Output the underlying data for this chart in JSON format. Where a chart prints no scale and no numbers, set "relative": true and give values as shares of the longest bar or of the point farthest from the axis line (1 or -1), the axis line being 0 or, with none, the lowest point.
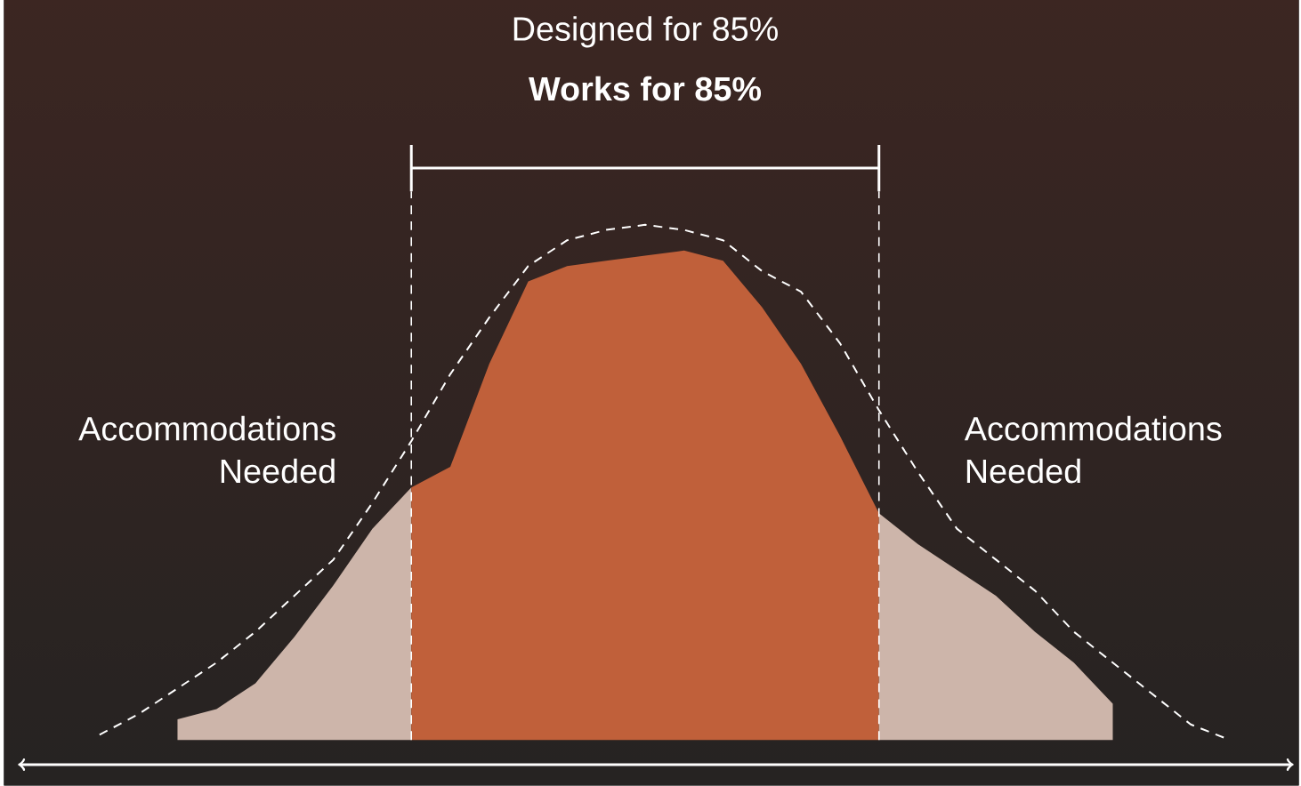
{
  "chart_data": {
    "type": "area",
    "relative": true,
    "tick_labels": false,
    "categories": [
      null,
      null,
      null,
      null,
      null,
      null,
      null,
      null,
      null,
      null,
      null,
      null,
      null,
      null,
      null,
      null,
      null,
      null,
      null,
      null,
      null,
      null,
      null,
      null,
      null,
      null,
      null,
      null,
      null,
      null
    ],
    "series": [
      {
        "color": "#cdb5aa",
        "values": [
          null,
          null,
          0.04,
          0.06,
          0.11,
          0.2,
          0.3,
          0.41,
          0.49,
          null,
          null,
          null,
          null,
          null,
          null,
          null,
          null,
          null,
          null,
          null,
          null,
          null,
          null,
          null,
          null,
          null,
          null,
          null,
          null,
          null
        ]
      },
      {
        "color": "#c0603a",
        "values": [
          null,
          null,
          null,
          null,
          null,
          null,
          null,
          null,
          0.49,
          0.53,
          0.73,
          0.89,
          0.92,
          0.93,
          0.94,
          0.95,
          0.93,
          0.84,
          0.73,
          0.59,
          0.44,
          null,
          null,
          null,
          null,
          null,
          null,
          null,
          null,
          null
        ]
      },
      {
        "color": "#cdb5aa",
        "values": [
          null,
          null,
          null,
          null,
          null,
          null,
          null,
          null,
          null,
          null,
          null,
          null,
          null,
          null,
          null,
          null,
          null,
          null,
          null,
          null,
          0.44,
          0.38,
          0.33,
          0.28,
          0.21,
          0.15,
          0.07,
          null,
          null,
          null
        ]
      },
      {
        "type": "line",
        "color": "#ffffff",
        "line_style": "dashed",
        "values": [
          0.01,
          0.05,
          0.1,
          0.15,
          0.21,
          0.28,
          0.35,
          0.46,
          0.58,
          0.71,
          0.82,
          0.92,
          0.97,
          0.99,
          1,
          0.99,
          0.97,
          0.91,
          0.87,
          0.77,
          0.64,
          0.52,
          0.41,
          0.35,
          0.29,
          0.21,
          0.15,
          0.09,
          0.03,
          0
        ]
      }
    ],
    "annotations": [
      "Designed for 85%",
      "**Works for 85%**",
      "Accommodations Needed",
      "Accommodations Needed"
    ]
  }
}
